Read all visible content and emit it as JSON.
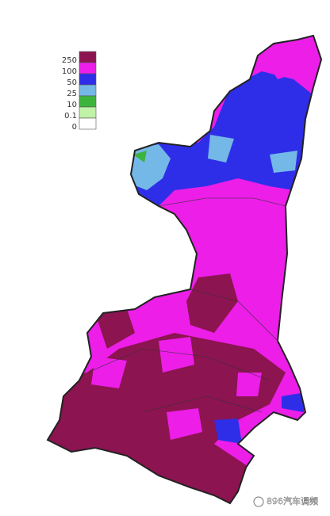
{
  "legend": {
    "items": [
      {
        "label": "250",
        "color": "#8c1450"
      },
      {
        "label": "100",
        "color": "#ec1ee8"
      },
      {
        "label": "50",
        "color": "#2e2ee8"
      },
      {
        "label": "25",
        "color": "#74b8e8"
      },
      {
        "label": "10",
        "color": "#3cb43c"
      },
      {
        "label": "0.1",
        "color": "#c0f2a8"
      },
      {
        "label": "0",
        "color": "#ffffff"
      }
    ]
  },
  "watermark": "896汽车调频"
}
